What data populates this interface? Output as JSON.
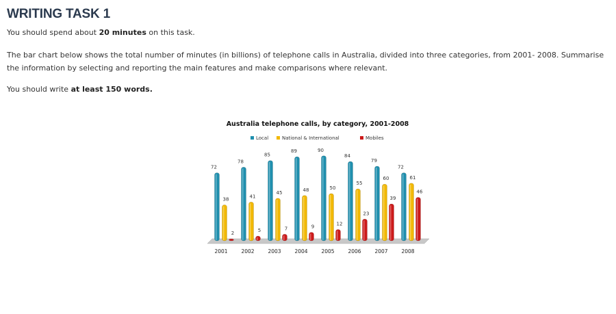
{
  "heading": "WRITING TASK 1",
  "p1": {
    "a": "You should spend about ",
    "b": "20 minutes",
    "c": " on this task."
  },
  "p2": "The bar chart below shows the total number of minutes (in billions) of telephone calls in Australia, divided into three categories, from 2001- 2008. Summarise the information by selecting and reporting the main features and make comparisons where relevant.",
  "p3": {
    "a": "You should write ",
    "b": "at least 150 words."
  },
  "chart_data": {
    "type": "bar",
    "title": "Australia telephone calls, by category, 2001-2008",
    "categories": [
      "2001",
      "2002",
      "2003",
      "2004",
      "2005",
      "2006",
      "2007",
      "2008"
    ],
    "series": [
      {
        "name": "Local",
        "color": "#1f8fae",
        "values": [
          72,
          78,
          85,
          89,
          90,
          84,
          79,
          72
        ]
      },
      {
        "name": "National & International",
        "color": "#f2b800",
        "values": [
          38,
          41,
          45,
          48,
          50,
          55,
          60,
          61
        ]
      },
      {
        "name": "Mobiles",
        "color": "#cc1a1a",
        "values": [
          2,
          5,
          7,
          9,
          12,
          23,
          39,
          46
        ]
      }
    ],
    "ylim": [
      0,
      100
    ],
    "legend": "top",
    "grid": false,
    "xlabel": "",
    "ylabel": ""
  }
}
